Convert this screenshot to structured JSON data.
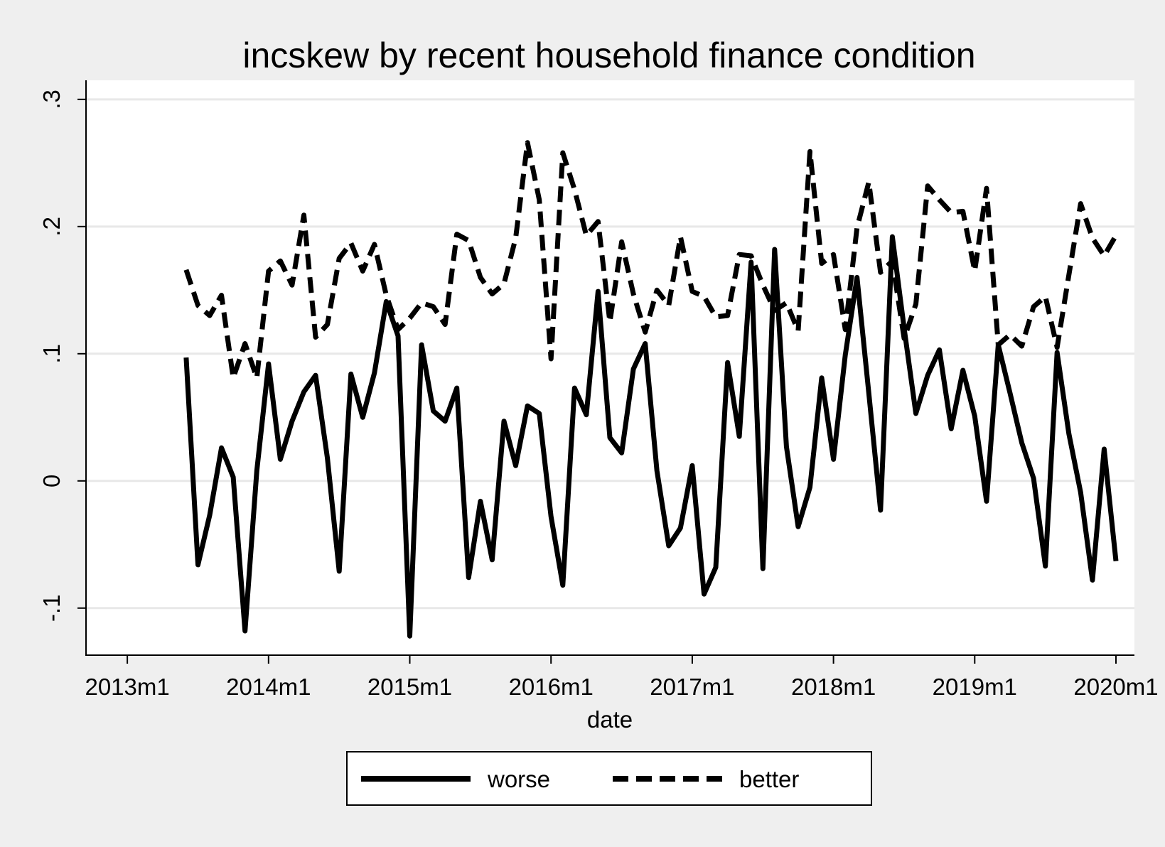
{
  "chart_data": {
    "type": "line",
    "title": "incskew by recent household finance condition",
    "xlabel": "date",
    "ylabel": "",
    "x_ticks": [
      "2013m1",
      "2014m1",
      "2015m1",
      "2016m1",
      "2017m1",
      "2018m1",
      "2019m1",
      "2020m1"
    ],
    "y_ticks": [
      "-.1",
      "0",
      ".1",
      ".2",
      ".3"
    ],
    "ylim": [
      -0.137,
      0.315
    ],
    "xlim": [
      "2012m11",
      "2020m1"
    ],
    "grid": true,
    "legend_position": "bottom",
    "x": [
      "2013m6",
      "2013m7",
      "2013m8",
      "2013m9",
      "2013m10",
      "2013m11",
      "2013m12",
      "2014m1",
      "2014m2",
      "2014m3",
      "2014m4",
      "2014m5",
      "2014m6",
      "2014m7",
      "2014m8",
      "2014m9",
      "2014m10",
      "2014m11",
      "2014m12",
      "2015m1",
      "2015m2",
      "2015m3",
      "2015m4",
      "2015m5",
      "2015m6",
      "2015m7",
      "2015m8",
      "2015m9",
      "2015m10",
      "2015m11",
      "2015m12",
      "2016m1",
      "2016m2",
      "2016m3",
      "2016m4",
      "2016m5",
      "2016m6",
      "2016m7",
      "2016m8",
      "2016m9",
      "2016m10",
      "2016m11",
      "2016m12",
      "2017m1",
      "2017m2",
      "2017m3",
      "2017m4",
      "2017m5",
      "2017m6",
      "2017m7",
      "2017m8",
      "2017m9",
      "2017m10",
      "2017m11",
      "2017m12",
      "2018m1",
      "2018m2",
      "2018m3",
      "2018m4",
      "2018m5",
      "2018m6",
      "2018m7",
      "2018m8",
      "2018m9",
      "2018m10",
      "2018m11",
      "2018m12",
      "2019m1",
      "2019m2",
      "2019m3",
      "2019m4",
      "2019m5",
      "2019m6",
      "2019m7",
      "2019m8",
      "2019m9",
      "2019m10",
      "2019m11",
      "2019m12",
      "2020m1"
    ],
    "series": [
      {
        "name": "worse",
        "style": "solid",
        "color": "#000000",
        "values": [
          0.097,
          -0.066,
          -0.027,
          0.026,
          0.003,
          -0.118,
          0.008,
          0.092,
          0.017,
          0.047,
          0.07,
          0.083,
          0.018,
          -0.071,
          0.084,
          0.05,
          0.085,
          0.141,
          0.114,
          -0.122,
          0.107,
          0.055,
          0.047,
          0.073,
          -0.076,
          -0.016,
          -0.062,
          0.047,
          0.012,
          0.059,
          0.053,
          -0.028,
          -0.082,
          0.073,
          0.052,
          0.149,
          0.034,
          0.022,
          0.088,
          0.108,
          0.008,
          -0.051,
          -0.037,
          0.012,
          -0.089,
          -0.068,
          0.093,
          0.035,
          0.172,
          -0.069,
          0.182,
          0.027,
          -0.036,
          -0.005,
          0.081,
          0.017,
          0.099,
          0.16,
          0.069,
          -0.023,
          0.192,
          0.12,
          0.053,
          0.083,
          0.103,
          0.041,
          0.087,
          0.051,
          -0.016,
          0.107,
          0.069,
          0.03,
          0.002,
          -0.067,
          0.101,
          0.037,
          -0.009,
          -0.078,
          0.025,
          -0.063
        ]
      },
      {
        "name": "better",
        "style": "dashed",
        "color": "#000000",
        "values": [
          0.166,
          0.138,
          0.13,
          0.146,
          0.081,
          0.108,
          0.081,
          0.165,
          0.173,
          0.154,
          0.209,
          0.113,
          0.123,
          0.175,
          0.187,
          0.165,
          0.186,
          0.146,
          0.119,
          0.128,
          0.14,
          0.137,
          0.123,
          0.194,
          0.189,
          0.16,
          0.147,
          0.155,
          0.191,
          0.266,
          0.221,
          0.096,
          0.258,
          0.229,
          0.193,
          0.204,
          0.125,
          0.188,
          0.147,
          0.117,
          0.15,
          0.138,
          0.192,
          0.149,
          0.145,
          0.129,
          0.13,
          0.178,
          0.177,
          0.154,
          0.134,
          0.14,
          0.118,
          0.259,
          0.171,
          0.178,
          0.119,
          0.199,
          0.235,
          0.164,
          0.173,
          0.112,
          0.139,
          0.232,
          0.221,
          0.211,
          0.212,
          0.165,
          0.23,
          0.107,
          0.115,
          0.106,
          0.137,
          0.145,
          0.105,
          0.162,
          0.218,
          0.191,
          0.177,
          0.193
        ]
      }
    ]
  }
}
